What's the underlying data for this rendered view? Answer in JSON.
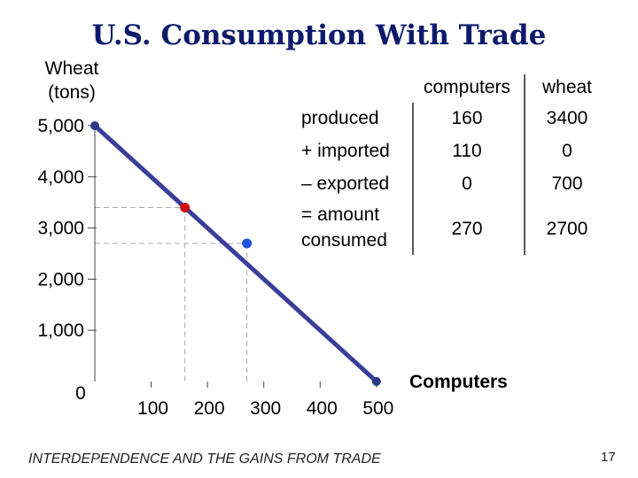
{
  "slide": {
    "title": "U.S. Consumption With Trade",
    "footer": "INTERDEPENDENCE AND THE GAINS FROM TRADE",
    "page_number": "17"
  },
  "chart_data": {
    "type": "line",
    "ylabel_lines": [
      "Wheat",
      "(tons)"
    ],
    "xlabel": "Computers",
    "x_ticks": [
      100,
      200,
      300,
      400,
      500
    ],
    "x_tick_labels": [
      "100",
      "200",
      "300",
      "400",
      "500"
    ],
    "y_ticks": [
      1000,
      2000,
      3000,
      4000,
      5000
    ],
    "y_tick_labels": [
      "1,000",
      "2,000",
      "3,000",
      "4,000",
      "5,000"
    ],
    "origin_label": "0",
    "xlim": [
      0,
      500
    ],
    "ylim": [
      0,
      5000
    ],
    "series": [
      {
        "name": "production possibilities frontier",
        "x": [
          0,
          500
        ],
        "y": [
          5000,
          0
        ],
        "color": "#3a3f9a"
      }
    ],
    "points": [
      {
        "name": "production",
        "x": 160,
        "y": 3400,
        "color": "#d01010"
      },
      {
        "name": "consumption",
        "x": 270,
        "y": 2700,
        "color": "#2255dd"
      }
    ],
    "endpoint_color": "#2b3a88"
  },
  "table": {
    "headers": [
      "",
      "computers",
      "wheat"
    ],
    "rows": [
      {
        "label": "produced",
        "computers": "160",
        "wheat": "3400"
      },
      {
        "label": "+ imported",
        "computers": "110",
        "wheat": "0"
      },
      {
        "label": "– exported",
        "computers": "0",
        "wheat": "700"
      },
      {
        "label_lines": [
          "= amount",
          "consumed"
        ],
        "computers": "270",
        "wheat": "2700"
      }
    ]
  }
}
